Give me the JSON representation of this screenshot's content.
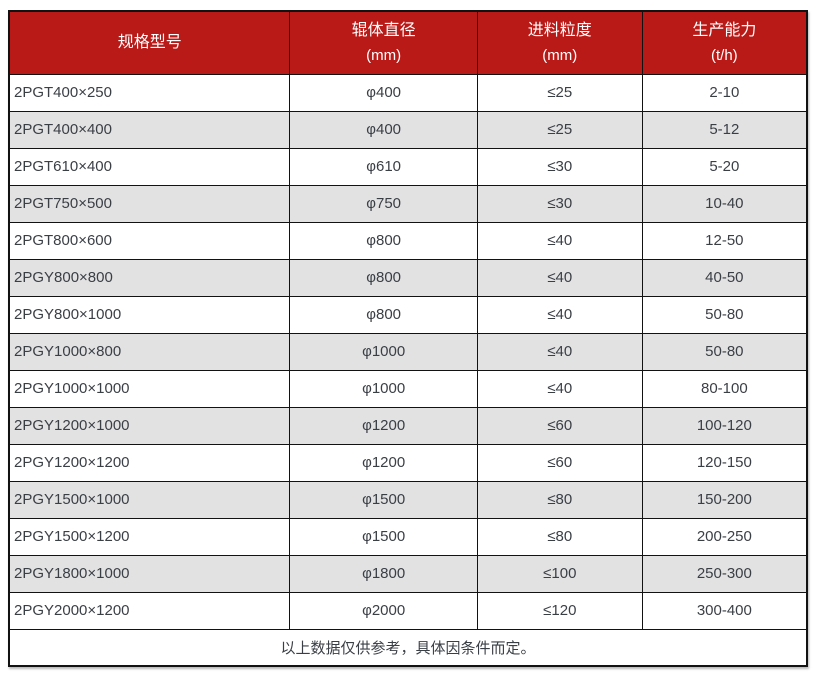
{
  "colors": {
    "header_bg": "#b91a17",
    "header_text": "#ffffff",
    "stripe_bg": "#e2e2e2",
    "border": "#121212",
    "body_text": "#3a3f46"
  },
  "table": {
    "columns": [
      {
        "label": "规格型号",
        "unit": ""
      },
      {
        "label": "辊体直径",
        "unit": "(mm)"
      },
      {
        "label": "进料粒度",
        "unit": "(mm)"
      },
      {
        "label": "生产能力",
        "unit": "(t/h)"
      }
    ],
    "rows": [
      [
        "2PGT400×250",
        "φ400",
        "≤25",
        "2-10"
      ],
      [
        "2PGT400×400",
        "φ400",
        "≤25",
        "5-12"
      ],
      [
        "2PGT610×400",
        "φ610",
        "≤30",
        "5-20"
      ],
      [
        "2PGT750×500",
        "φ750",
        "≤30",
        "10-40"
      ],
      [
        "2PGT800×600",
        "φ800",
        "≤40",
        "12-50"
      ],
      [
        "2PGY800×800",
        "φ800",
        "≤40",
        "40-50"
      ],
      [
        "2PGY800×1000",
        "φ800",
        "≤40",
        "50-80"
      ],
      [
        "2PGY1000×800",
        "φ1000",
        "≤40",
        "50-80"
      ],
      [
        "2PGY1000×1000",
        "φ1000",
        "≤40",
        "80-100"
      ],
      [
        "2PGY1200×1000",
        "φ1200",
        "≤60",
        "100-120"
      ],
      [
        "2PGY1200×1200",
        "φ1200",
        "≤60",
        "120-150"
      ],
      [
        "2PGY1500×1000",
        "φ1500",
        "≤80",
        "150-200"
      ],
      [
        "2PGY1500×1200",
        "φ1500",
        "≤80",
        "200-250"
      ],
      [
        "2PGY1800×1000",
        "φ1800",
        "≤100",
        "250-300"
      ],
      [
        "2PGY2000×1200",
        "φ2000",
        "≤120",
        "300-400"
      ]
    ],
    "footnote": "以上数据仅供参考，具体因条件而定。"
  }
}
